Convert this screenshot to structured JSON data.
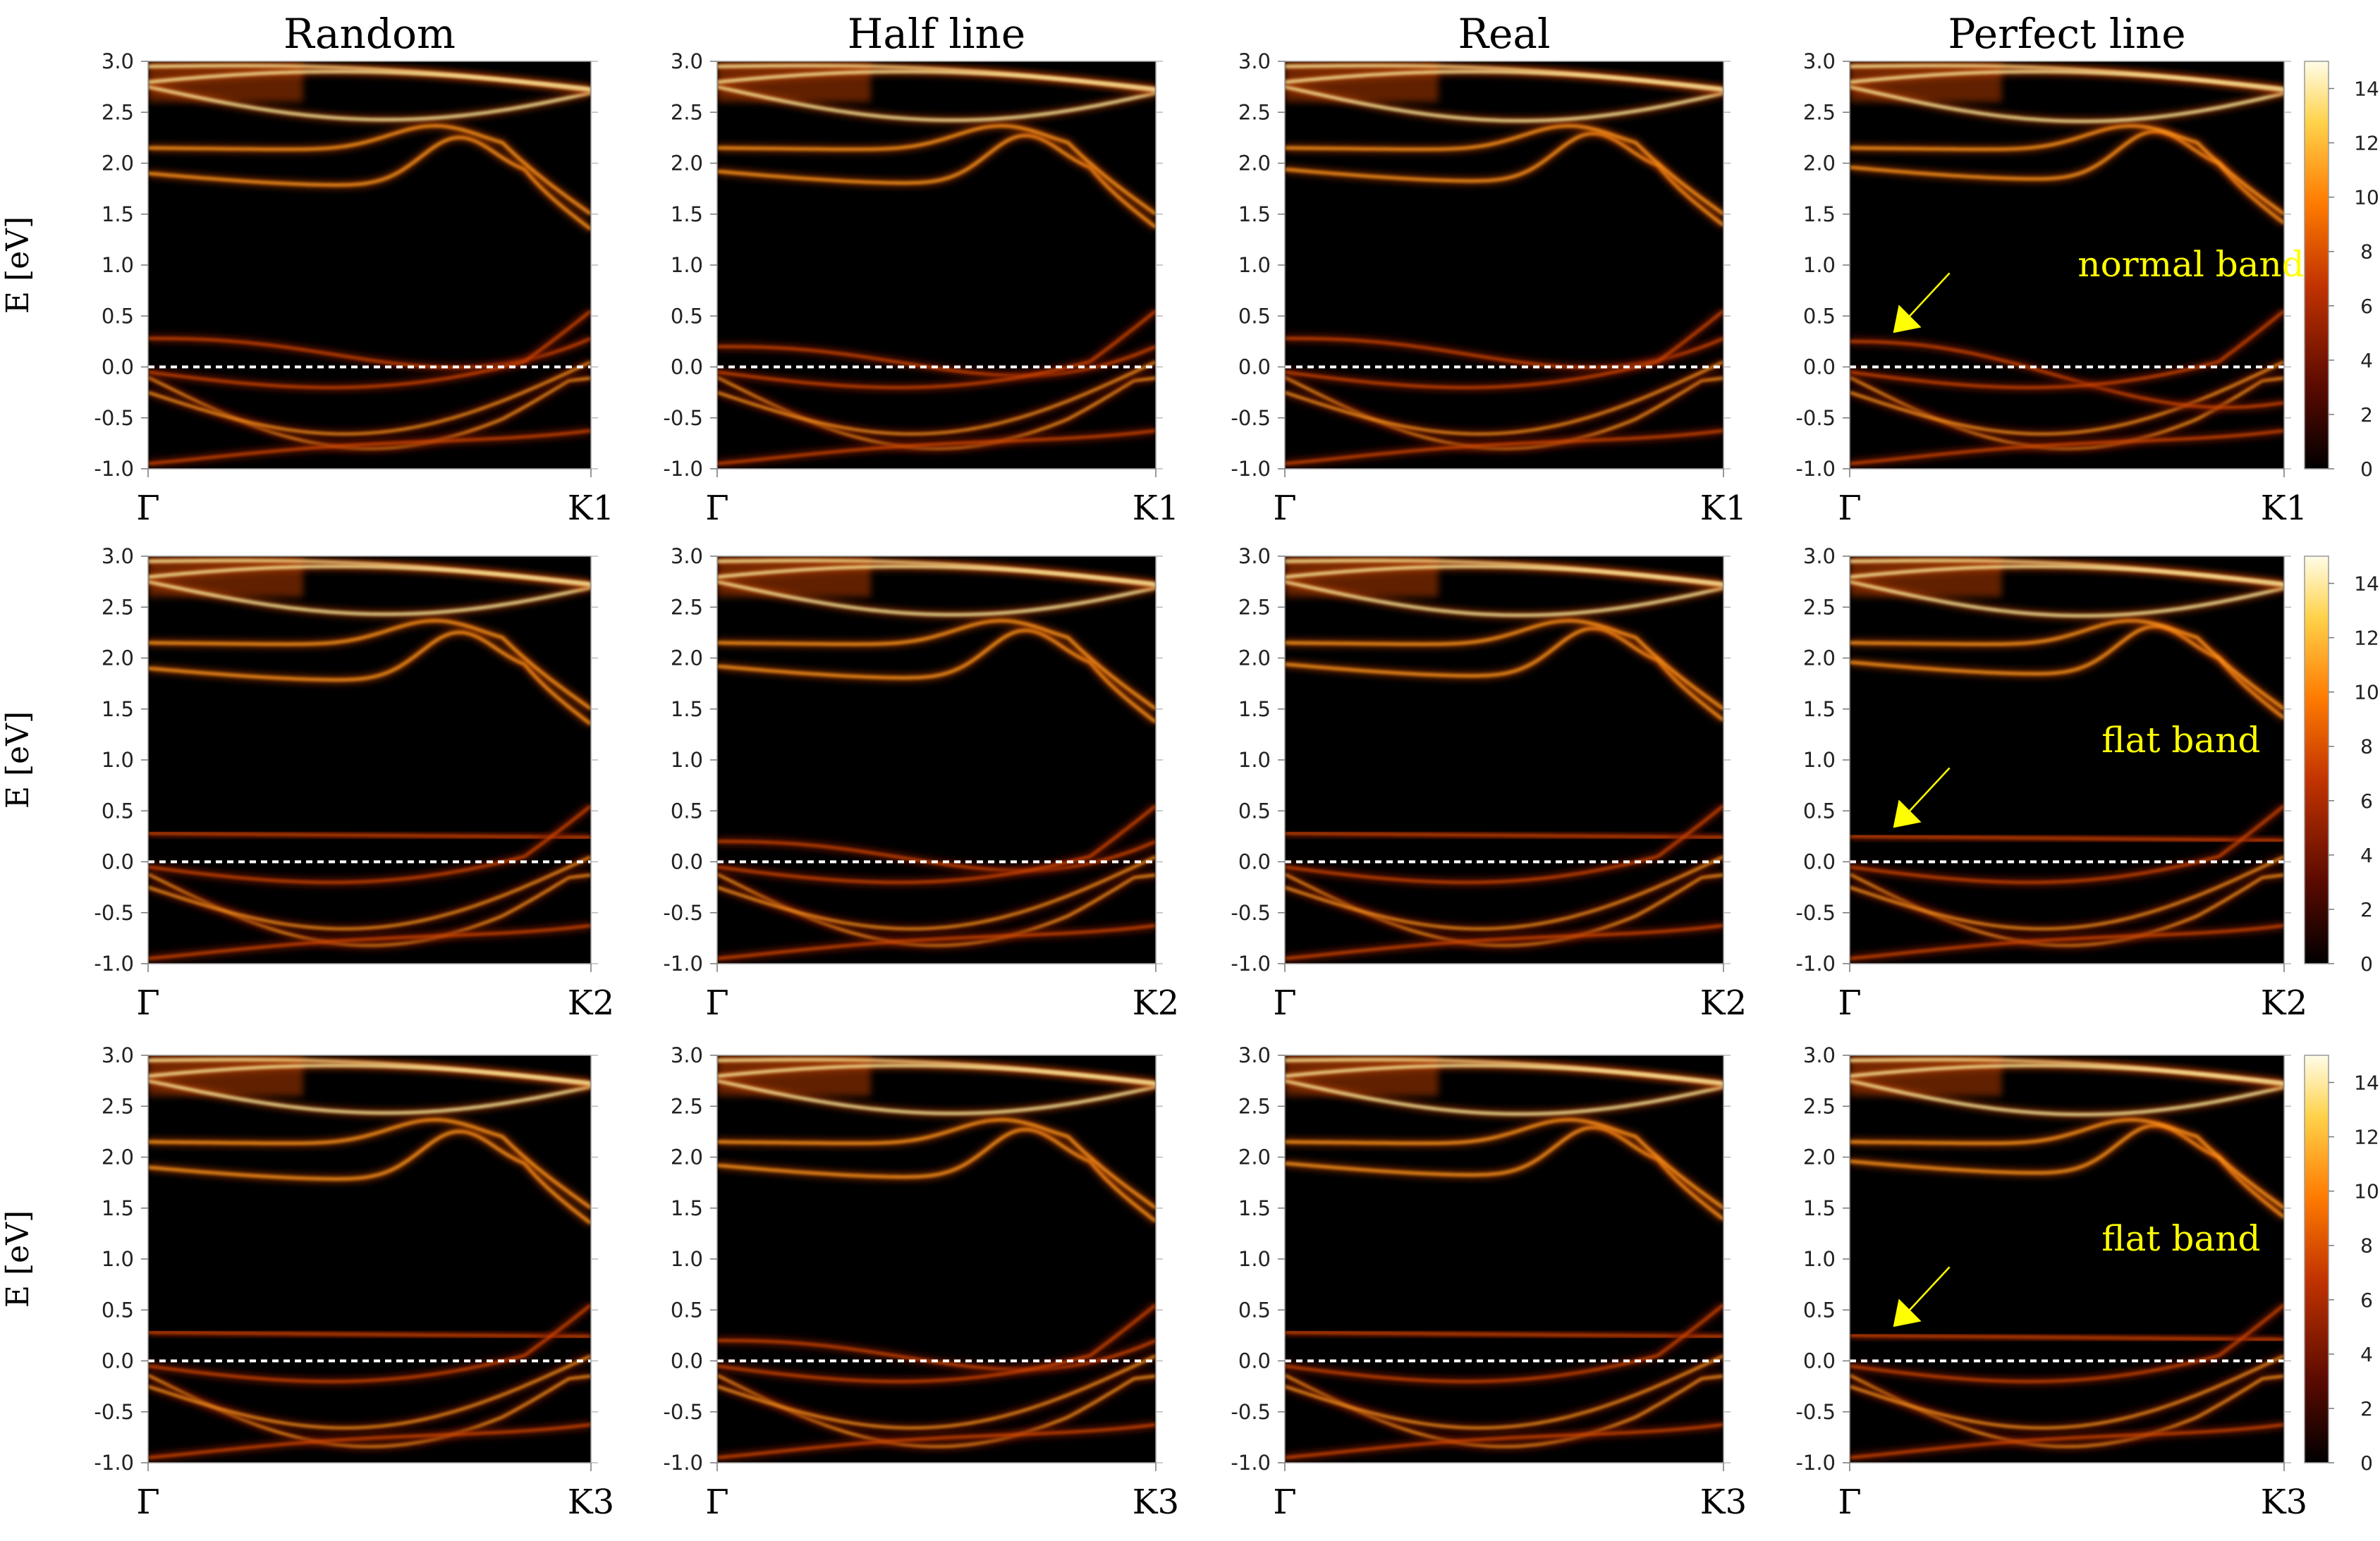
{
  "chart_data": {
    "type": "heatmap",
    "description_kind": "band structure spectral function grid",
    "columns": [
      "Random",
      "Half line",
      "Real",
      "Perfect line"
    ],
    "rows": [
      {
        "ylabel": "E [eV]",
        "x_start": "Γ",
        "x_end": "K1"
      },
      {
        "ylabel": "E [eV]",
        "x_start": "Γ",
        "x_end": "K2"
      },
      {
        "ylabel": "E [eV]",
        "x_start": "Γ",
        "x_end": "K3"
      }
    ],
    "y_ticks": [
      "3.0",
      "2.5",
      "2.0",
      "1.5",
      "1.0",
      "0.5",
      "0.0",
      "-0.5",
      "-1.0"
    ],
    "ylim": [
      -1.0,
      3.0
    ],
    "fermi_level": 0.0,
    "colorbar": {
      "ticks": [
        "14",
        "12",
        "10",
        "8",
        "6",
        "4",
        "2",
        "0"
      ],
      "range": [
        0,
        15
      ]
    },
    "annotations": [
      {
        "row": 0,
        "col": 3,
        "text": "normal band",
        "energy": 0.25,
        "k": 0.1
      },
      {
        "row": 1,
        "col": 3,
        "text": "flat band",
        "energy": 0.25,
        "k": 0.1
      },
      {
        "row": 2,
        "col": 3,
        "text": "flat band",
        "energy": 0.25,
        "k": 0.1
      }
    ]
  },
  "colors": {
    "background": "#000000",
    "band_dim": "#6a1200",
    "band_mid": "#d84a00",
    "band_bright": "#ff9a1a",
    "band_hot": "#fff0a0",
    "fermi_line": "#ffffff",
    "annotation": "#ffff00"
  }
}
